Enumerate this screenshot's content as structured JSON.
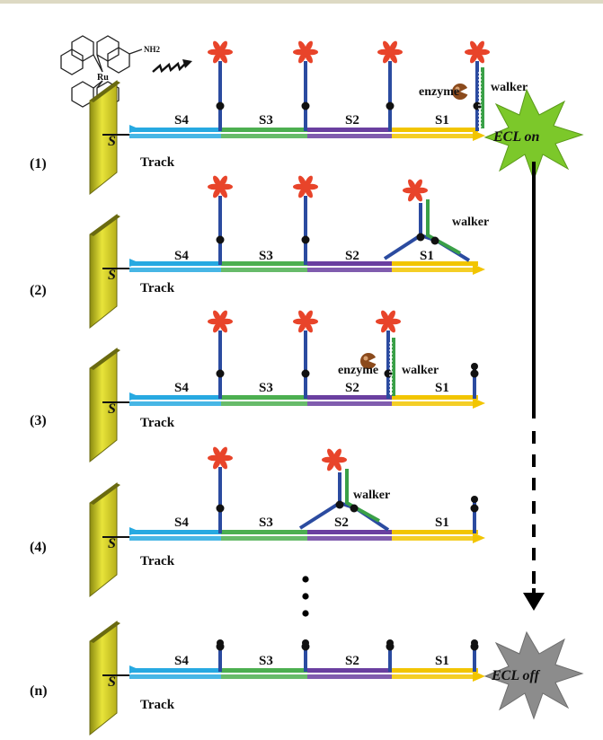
{
  "labels": {
    "track": "Track",
    "segments": [
      "S4",
      "S3",
      "S2",
      "S1"
    ],
    "steps": [
      "(1)",
      "(2)",
      "(3)",
      "(4)",
      "(n)"
    ],
    "enzyme": "enzyme",
    "walker": "walker",
    "ecl_on": "ECL on",
    "ecl_off": "ECL off",
    "nh2": "NH2",
    "ru": "Ru",
    "s_mark": "S"
  },
  "colors": {
    "s4": "#27a9e1",
    "s3": "#4caf50",
    "s2": "#6a3fa0",
    "s1": "#f2c500",
    "stem": "#2b4ba0",
    "walker": "#3aa047",
    "flower": "#e8442a",
    "gold": "#d8d21a",
    "ecl_on": "#7cc82a",
    "ecl_off": "#8c8c8c"
  }
}
